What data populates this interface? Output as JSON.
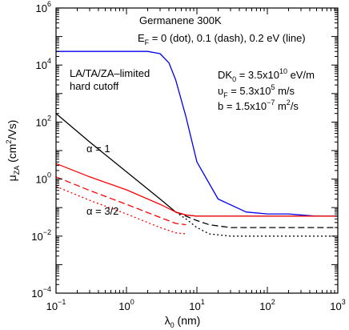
{
  "chart_data": {
    "type": "line",
    "xscale": "log",
    "yscale": "log",
    "xlim": [
      0.1,
      1000
    ],
    "ylim": [
      0.0001,
      1000000
    ],
    "grid": false,
    "legend": "none",
    "x_ticks": [
      {
        "base": "10",
        "exp": "−1"
      },
      {
        "base": "10",
        "exp": "0"
      },
      {
        "base": "10",
        "exp": "1"
      },
      {
        "base": "10",
        "exp": "2"
      },
      {
        "base": "10",
        "exp": "3"
      }
    ],
    "y_ticks": [
      {
        "base": "10",
        "exp": "−4"
      },
      {
        "base": "10",
        "exp": "−2"
      },
      {
        "base": "10",
        "exp": "0"
      },
      {
        "base": "10",
        "exp": "2"
      },
      {
        "base": "10",
        "exp": "4"
      },
      {
        "base": "10",
        "exp": "6"
      }
    ],
    "xlabel": {
      "main": "λ",
      "sub": "0",
      "unit": " (nm)"
    },
    "ylabel": {
      "main": "μ",
      "sub": "ZA",
      "unit_open": " (cm",
      "unit_sup": "2",
      "unit_close": "/Vs)"
    },
    "annotations": {
      "title": "Germanene 300K",
      "ef_line": {
        "a": "E",
        "sub": "F",
        "b": " = 0 (dot), 0.1 (dash), 0.2 eV (line)"
      },
      "cutoff_1": "LA/TA/ZA–limited",
      "cutoff_2": "hard cutoff",
      "dk": {
        "a": "DK",
        "sub": "0",
        "b": " = 3.5x10",
        "sup": "10",
        "c": " eV/m"
      },
      "vf": {
        "a": "υ",
        "sub": "F",
        "b": " = 5.3x10",
        "sup": "5",
        "c": " m/s"
      },
      "b": {
        "a": "b = 1.5x10",
        "sup": "−7",
        "b": " m",
        "sup2": "2",
        "c": "/s"
      },
      "alpha1": "α = 1",
      "alpha32": "α = 3/2"
    },
    "series": [
      {
        "style": "solid",
        "color": "#0000ee",
        "x": [
          0.1,
          0.5,
          1,
          2,
          3,
          4,
          5,
          7,
          10,
          20,
          50,
          100,
          200,
          500,
          1000
        ],
        "y": [
          30000,
          30000,
          30000,
          30000,
          25000,
          12000,
          3000,
          150,
          4,
          0.2,
          0.07,
          0.06,
          0.06,
          0.05,
          0.05
        ]
      },
      {
        "style": "solid",
        "color": "#000000",
        "x": [
          0.1,
          0.3,
          1,
          3,
          5,
          7,
          10,
          30,
          100,
          300,
          1000
        ],
        "y": [
          200,
          20,
          1.8,
          0.2,
          0.07,
          0.055,
          0.05,
          0.05,
          0.05,
          0.05,
          0.05
        ]
      },
      {
        "style": "dashed",
        "color": "#000000",
        "x": [
          5,
          7,
          10,
          15,
          30,
          100,
          300,
          1000
        ],
        "y": [
          0.07,
          0.05,
          0.035,
          0.025,
          0.02,
          0.02,
          0.02,
          0.02
        ]
      },
      {
        "style": "dotted",
        "color": "#000000",
        "x": [
          5,
          7,
          10,
          15,
          30,
          100,
          300,
          1000
        ],
        "y": [
          0.07,
          0.04,
          0.02,
          0.012,
          0.01,
          0.01,
          0.01,
          0.01
        ]
      },
      {
        "style": "solid",
        "color": "#ff0000",
        "x": [
          0.1,
          0.3,
          1,
          3,
          5,
          7,
          10,
          30,
          100,
          300,
          1000
        ],
        "y": [
          3.5,
          1.2,
          0.42,
          0.13,
          0.07,
          0.055,
          0.05,
          0.05,
          0.05,
          0.05,
          0.05
        ]
      },
      {
        "style": "dashed",
        "color": "#ff0000",
        "x": [
          0.1,
          0.3,
          1,
          3,
          5,
          7
        ],
        "y": [
          1.2,
          0.4,
          0.13,
          0.045,
          0.028,
          0.025
        ]
      },
      {
        "style": "dotted",
        "color": "#ff0000",
        "x": [
          0.1,
          0.3,
          1,
          3,
          5,
          7
        ],
        "y": [
          0.55,
          0.18,
          0.06,
          0.02,
          0.013,
          0.012
        ]
      }
    ]
  }
}
